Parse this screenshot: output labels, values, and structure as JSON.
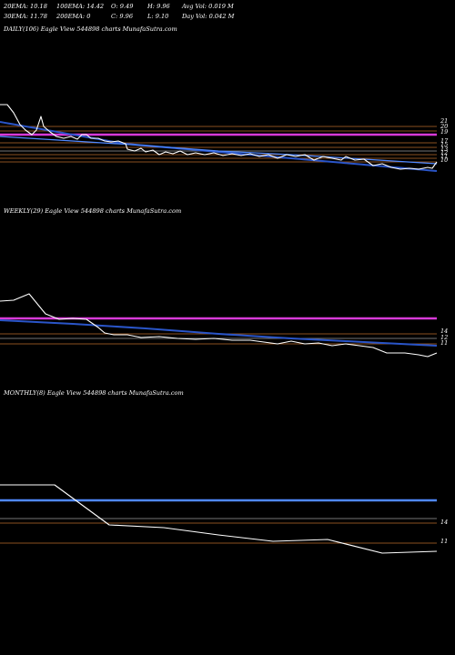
{
  "header": {
    "ema20": "20EMA: 10.18",
    "ema100": "100EMA: 14.42",
    "open": "O: 9.49",
    "high": "H: 9.96",
    "avg_vol": "Avg Vol: 0.019 M",
    "ema30": "30EMA: 11.78",
    "ema200": "200EMA: 0",
    "close": "C: 9.96",
    "low": "L: 9.10",
    "day_vol": "Day Vol: 0.042 M"
  },
  "panels": {
    "daily_title": "DAILY(106) Eagle   View  544898  charts MunafaSutra.com",
    "weekly_title": "WEEKLY(29) Eagle   View  544898  charts MunafaSutra.com",
    "monthly_title": "MONTHLY(8) Eagle   View  544898  charts MunafaSutra.com"
  },
  "colors": {
    "price": "#ffffff",
    "ema_blue": "#2a55c8",
    "ema_blue_light": "#4f88ff",
    "ema_magenta": "#d83ad8",
    "level_orange": "#b86a2a",
    "level_grey": "#9a9a9a"
  },
  "chart_data": [
    {
      "type": "line",
      "name": "daily",
      "level_labels": [
        "21",
        "20",
        "19",
        "17",
        "15",
        "13",
        "12",
        "11",
        "10"
      ],
      "price": [
        27,
        27,
        27,
        26,
        26,
        24,
        23,
        22,
        23,
        27,
        22,
        21,
        21,
        20,
        20,
        20,
        19,
        20,
        20,
        20,
        19,
        19,
        19,
        18,
        17,
        17,
        17,
        16,
        16,
        16,
        16,
        16,
        16,
        15,
        15,
        15,
        15,
        15,
        15,
        15,
        15,
        15,
        15,
        15,
        15,
        15,
        15,
        15,
        14,
        15,
        14,
        14,
        14,
        14,
        14,
        14,
        14,
        14,
        14,
        14,
        14,
        13,
        13,
        13,
        13,
        13,
        13,
        13,
        13,
        13,
        13,
        13,
        13,
        13,
        13,
        13,
        13,
        13,
        13,
        13,
        13,
        13,
        13,
        13,
        13,
        13,
        12,
        12,
        12,
        12,
        12,
        12,
        12,
        12,
        12,
        12,
        12,
        11,
        11,
        11,
        10,
        10,
        10,
        10,
        10,
        10
      ],
      "ema_blue": [
        22,
        21.8,
        21.6,
        21.4,
        21.2,
        21,
        20.8,
        20.6,
        20.4,
        20.2,
        20,
        19.8,
        19.6,
        19.4,
        19.2,
        19,
        18.8,
        18.6,
        18.4,
        18.2,
        18,
        17.8,
        17.6,
        17.4,
        17.2,
        17,
        16.8,
        16.6,
        16.4,
        16.2,
        16,
        15.9,
        15.8,
        15.7,
        15.6,
        15.5,
        15.4,
        15.3,
        15.2,
        15.1,
        15,
        14.9,
        14.8,
        14.7,
        14.6,
        14.5,
        14.4,
        14.3,
        14.2,
        14.1,
        14,
        13.9,
        13.8,
        13.7,
        13.6,
        13.5,
        13.4,
        13.3,
        13.2,
        13.1,
        13,
        12.9,
        12.8,
        12.7,
        12.6,
        12.5,
        12.4,
        12.3,
        12.2,
        12.1,
        12,
        11.9,
        11.8,
        11.7,
        11.6,
        11.5,
        11.4,
        11.3,
        11.2,
        11.1,
        11,
        10.9,
        10.8,
        10.7,
        10.6,
        10.5,
        10.4,
        10.3,
        10.2,
        10.1,
        10,
        9.9,
        9.8,
        9.7,
        9.6,
        9.5,
        9.4,
        9.3,
        9.2,
        9.1,
        9,
        8.9,
        8.8,
        8.7,
        8.6,
        8.5
      ],
      "ema_magenta": 20
    },
    {
      "type": "line",
      "name": "weekly",
      "level_labels": [
        "14",
        "12",
        "11"
      ],
      "price": [
        20,
        20,
        20,
        21,
        19,
        19,
        18,
        18,
        16,
        16,
        15,
        15,
        15,
        15,
        15,
        15,
        14,
        14,
        14,
        14,
        13,
        13,
        13,
        13,
        12,
        12,
        11,
        11,
        10
      ],
      "ema_magenta": 18
    },
    {
      "type": "line",
      "name": "monthly",
      "level_labels": [
        "14",
        "11"
      ],
      "price": [
        20,
        20,
        20,
        14,
        14,
        13,
        12,
        11
      ],
      "ema_blue": 18
    }
  ]
}
